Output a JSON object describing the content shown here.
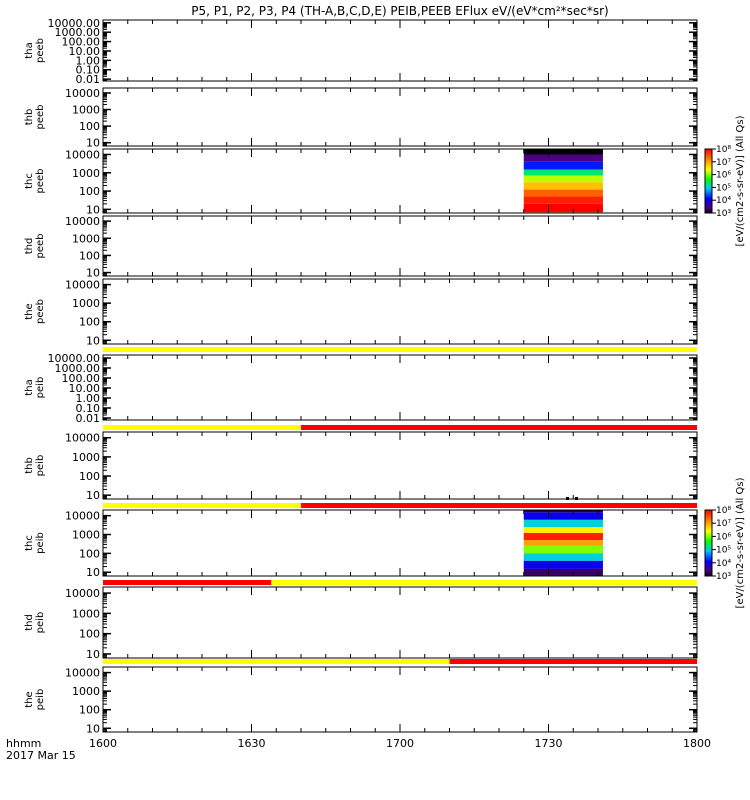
{
  "title": "P5, P1, P2, P3, P4 (TH-A,B,C,D,E) PEIB,PEEB EFlux eV/(eV*cm²*sec*sr)",
  "footer": {
    "hhmm_label": "hhmm",
    "date_label": "2017 Mar 15",
    "xtick_labels": [
      "1600",
      "1630",
      "1700",
      "1730",
      "1800"
    ]
  },
  "colorbar": {
    "ticks": [
      "10³",
      "10⁴",
      "10⁵",
      "10⁶",
      "10⁷",
      "10⁸"
    ],
    "label": "[eV/(cm2-s-sr-eV)] (All Qs)"
  },
  "colors": {
    "status_yellow": "#ffff00",
    "status_red": "#ff0000",
    "axis": "#000000"
  },
  "chart_data": {
    "type": "heatmap",
    "xlim_minutes": [
      0,
      120
    ],
    "x_ticks_minutes": [
      0,
      30,
      60,
      90,
      120
    ],
    "colorbar_range_log10": [
      3,
      8
    ],
    "panels": [
      {
        "id": "tha-peeb",
        "ylabel": [
          "tha",
          "peeb"
        ],
        "yticks": [
          "10000.00",
          "1000.00",
          "100.00",
          "10.00",
          "1.00",
          "0.10",
          "0.01"
        ],
        "spectrogram": null
      },
      {
        "id": "thb-peeb",
        "ylabel": [
          "thb",
          "peeb"
        ],
        "yticks": [
          "10000",
          "1000",
          "100",
          "10"
        ],
        "spectrogram": null
      },
      {
        "id": "thc-peeb",
        "ylabel": [
          "thc",
          "peeb"
        ],
        "yticks": [
          "10000",
          "1000",
          "100",
          "10"
        ],
        "spectrogram": {
          "x_start": 85,
          "x_end": 101,
          "bands": [
            [
              10000,
              30000,
              3.0
            ],
            [
              4000,
              10000,
              3.4
            ],
            [
              1500,
              4000,
              4.2
            ],
            [
              700,
              1500,
              5.3
            ],
            [
              300,
              700,
              6.2
            ],
            [
              120,
              300,
              6.8
            ],
            [
              50,
              120,
              7.4
            ],
            [
              20,
              50,
              7.8
            ],
            [
              7,
              20,
              8.0
            ],
            [
              5,
              7,
              7.3
            ]
          ]
        }
      },
      {
        "id": "thd-peeb",
        "ylabel": [
          "thd",
          "peeb"
        ],
        "yticks": [
          "10000",
          "1000",
          "100",
          "10"
        ],
        "spectrogram": null
      },
      {
        "id": "the-peeb",
        "ylabel": [
          "the",
          "peeb"
        ],
        "yticks": [
          "10000",
          "1000",
          "100",
          "10"
        ],
        "spectrogram": null
      },
      {
        "id": "tha-peib",
        "ylabel": [
          "tha",
          "peib"
        ],
        "yticks": [
          "10000.00",
          "1000.00",
          "100.00",
          "10.00",
          "1.00",
          "0.10",
          "0.01"
        ],
        "spectrogram": null
      },
      {
        "id": "thb-peib",
        "ylabel": [
          "thb",
          "peib"
        ],
        "yticks": [
          "10000",
          "1000",
          "100",
          "10"
        ],
        "spectrogram": null
      },
      {
        "id": "thc-peib",
        "ylabel": [
          "thc",
          "peib"
        ],
        "yticks": [
          "10000",
          "1000",
          "100",
          "10"
        ],
        "spectrogram": {
          "x_start": 85,
          "x_end": 101,
          "bands": [
            [
              15000,
              30000,
              3.2
            ],
            [
              6000,
              15000,
              4.0
            ],
            [
              2500,
              6000,
              5.0
            ],
            [
              1200,
              2500,
              6.5
            ],
            [
              500,
              1200,
              7.8
            ],
            [
              250,
              500,
              7.0
            ],
            [
              100,
              250,
              6.0
            ],
            [
              40,
              100,
              5.0
            ],
            [
              15,
              40,
              4.0
            ],
            [
              5,
              15,
              3.3
            ]
          ]
        }
      },
      {
        "id": "thd-peib",
        "ylabel": [
          "thd",
          "peib"
        ],
        "yticks": [
          "10000",
          "1000",
          "100",
          "10"
        ],
        "spectrogram": null
      },
      {
        "id": "the-peib",
        "ylabel": [
          "the",
          "peib"
        ],
        "yticks": [
          "10000",
          "1000",
          "100",
          "10"
        ],
        "spectrogram": null
      }
    ],
    "status_bars": [
      {
        "after_panel": 4,
        "segments": [
          {
            "from": 0,
            "to": 120,
            "color": "yellow"
          }
        ]
      },
      {
        "after_panel": 5,
        "segments": [
          {
            "from": 0,
            "to": 40,
            "color": "yellow"
          },
          {
            "from": 40,
            "to": 120,
            "color": "red"
          }
        ]
      },
      {
        "after_panel": 6,
        "segments": [
          {
            "from": 0,
            "to": 40,
            "color": "yellow"
          },
          {
            "from": 40,
            "to": 120,
            "color": "red"
          }
        ]
      },
      {
        "after_panel": 7,
        "segments": [
          {
            "from": 0,
            "to": 34,
            "color": "red"
          },
          {
            "from": 34,
            "to": 120,
            "color": "yellow"
          }
        ]
      },
      {
        "after_panel": 8,
        "segments": [
          {
            "from": 0,
            "to": 70,
            "color": "yellow"
          },
          {
            "from": 70,
            "to": 120,
            "color": "red"
          }
        ]
      }
    ]
  }
}
